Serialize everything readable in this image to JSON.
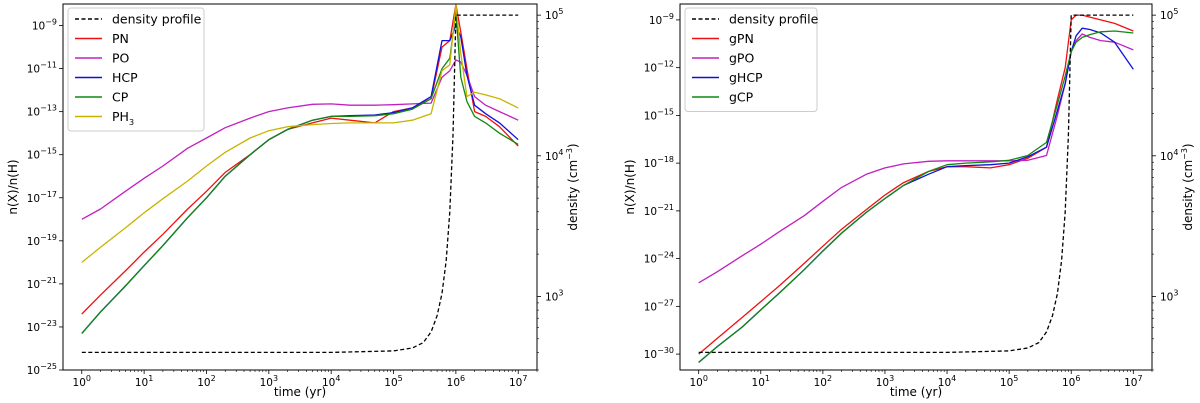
{
  "chart_data": [
    {
      "type": "line",
      "x_scale": "log",
      "y_scale": "log",
      "y2_scale": "log",
      "xlim": [
        0.5,
        20000000
      ],
      "ylim": [
        1e-25,
        1e-08
      ],
      "y2lim": [
        300,
        120000
      ],
      "xlabel": "time (yr)",
      "ylabel": "n(X)/n(H)",
      "y2label_base": "density (cm",
      "y2label_sup": "−3",
      "y2label_end": ")",
      "legend": "top-left",
      "x_ticks": [
        1,
        10,
        100,
        1000,
        10000,
        100000,
        1000000,
        10000000
      ],
      "x_tick_exps": [
        "0",
        "1",
        "2",
        "3",
        "4",
        "5",
        "6",
        "7"
      ],
      "y_ticks": [
        1e-25,
        1e-23,
        1e-21,
        1e-19,
        1e-17,
        1e-15,
        1e-13,
        1e-11,
        1e-09
      ],
      "y_tick_exps": [
        "−25",
        "−23",
        "−21",
        "−19",
        "−17",
        "−15",
        "−13",
        "−11",
        "−9"
      ],
      "y2_ticks": [
        1000,
        10000,
        100000
      ],
      "y2_tick_exps": [
        "3",
        "4",
        "5"
      ],
      "x": [
        1,
        2,
        5,
        10,
        20,
        50,
        100,
        200,
        500,
        1000,
        2000,
        5000,
        10000,
        20000,
        50000,
        100000,
        200000,
        400000,
        600000,
        800000,
        1000000,
        1200000,
        1500000,
        2000000,
        3000000,
        5000000,
        10000000
      ],
      "density_profile": {
        "name": "density profile",
        "color": "#000000",
        "dashed": true,
        "x": [
          1,
          10,
          100,
          1000,
          10000,
          100000,
          200000,
          300000,
          400000,
          500000,
          600000,
          700000,
          800000,
          900000,
          1000000,
          2000000,
          5000000,
          10000000
        ],
        "values": [
          400,
          400,
          400,
          400,
          400,
          410,
          430,
          470,
          560,
          730,
          1050,
          1800,
          4000,
          14000,
          100000,
          100000,
          100000,
          100000
        ]
      },
      "series": [
        {
          "name": "PN",
          "color": "#ee1111",
          "values": [
            4e-23,
            3e-22,
            4e-21,
            3e-20,
            2e-19,
            3e-18,
            2e-17,
            1.5e-16,
            1e-15,
            5e-15,
            1.5e-14,
            3e-14,
            5e-14,
            4e-14,
            3e-14,
            1e-13,
            1.5e-13,
            4e-13,
            1e-10,
            2e-10,
            1e-08,
            5e-10,
            1e-11,
            1e-13,
            6e-14,
            2e-14,
            2.5e-15
          ]
        },
        {
          "name": "PO",
          "color": "#c020c0",
          "values": [
            1e-18,
            3e-18,
            2e-17,
            8e-17,
            3e-16,
            2e-15,
            6e-15,
            1.8e-14,
            5e-14,
            1e-13,
            1.5e-13,
            2.2e-13,
            2.3e-13,
            2e-13,
            2e-13,
            2.1e-13,
            2.3e-13,
            2.5e-13,
            4e-12,
            8e-12,
            2.5e-11,
            2e-11,
            5e-12,
            5e-13,
            2e-13,
            1e-13,
            4e-14
          ]
        },
        {
          "name": "HCP",
          "color": "#1010dd",
          "values": [
            5e-24,
            5e-23,
            8e-22,
            7e-21,
            6e-20,
            1.2e-18,
            1e-17,
            1e-16,
            1e-15,
            5e-15,
            1.5e-14,
            4e-14,
            6e-14,
            6.5e-14,
            7e-14,
            9e-14,
            1.5e-13,
            5e-13,
            2e-10,
            2e-10,
            1e-09,
            3e-10,
            5e-12,
            2e-13,
            8e-14,
            3e-14,
            5e-15
          ]
        },
        {
          "name": "CP",
          "color": "#118811",
          "values": [
            5e-24,
            5e-23,
            8e-22,
            7e-21,
            6e-20,
            1.2e-18,
            1e-17,
            1e-16,
            1e-15,
            5e-15,
            1.5e-14,
            4e-14,
            6e-14,
            6e-14,
            6.5e-14,
            8e-14,
            1.3e-13,
            4e-13,
            1e-11,
            3e-11,
            4e-09,
            4e-12,
            3e-13,
            6e-14,
            3e-14,
            1e-14,
            3e-15
          ]
        },
        {
          "name": "PH3",
          "label_base": "PH",
          "label_sub": "3",
          "color": "#c8b400",
          "values": [
            1e-20,
            5e-20,
            4e-19,
            2e-18,
            9e-18,
            6e-17,
            3e-16,
            1.3e-15,
            6e-15,
            1.3e-14,
            2e-14,
            2.5e-14,
            2.8e-14,
            3e-14,
            3e-14,
            3e-14,
            4e-14,
            8e-14,
            8e-12,
            1.5e-11,
            1e-08,
            5e-11,
            5e-13,
            8e-13,
            6e-13,
            4e-13,
            1.5e-13
          ]
        }
      ]
    },
    {
      "type": "line",
      "x_scale": "log",
      "y_scale": "log",
      "y2_scale": "log",
      "xlim": [
        0.5,
        20000000
      ],
      "ylim": [
        1e-31,
        1e-08
      ],
      "y2lim": [
        300,
        120000
      ],
      "xlabel": "time (yr)",
      "ylabel": "n(X)/n(H)",
      "y2label_base": "density (cm",
      "y2label_sup": "−3",
      "y2label_end": ")",
      "legend": "top-left",
      "x_ticks": [
        1,
        10,
        100,
        1000,
        10000,
        100000,
        1000000,
        10000000
      ],
      "x_tick_exps": [
        "0",
        "1",
        "2",
        "3",
        "4",
        "5",
        "6",
        "7"
      ],
      "y_ticks": [
        1e-30,
        1e-27,
        1e-24,
        1e-21,
        1e-18,
        1e-15,
        1e-12,
        1e-09
      ],
      "y_tick_exps": [
        "−30",
        "−27",
        "−24",
        "−21",
        "−18",
        "−15",
        "−12",
        "−9"
      ],
      "y2_ticks": [
        1000,
        10000,
        100000
      ],
      "y2_tick_exps": [
        "3",
        "4",
        "5"
      ],
      "x": [
        1,
        2,
        5,
        10,
        20,
        50,
        100,
        200,
        500,
        1000,
        2000,
        5000,
        10000,
        20000,
        50000,
        100000,
        200000,
        400000,
        600000,
        800000,
        1000000,
        1200000,
        1500000,
        2000000,
        3000000,
        5000000,
        10000000
      ],
      "density_profile": {
        "name": "density profile",
        "color": "#000000",
        "dashed": true,
        "x": [
          1,
          10,
          100,
          1000,
          10000,
          100000,
          200000,
          300000,
          400000,
          500000,
          600000,
          700000,
          800000,
          900000,
          1000000,
          2000000,
          5000000,
          10000000
        ],
        "values": [
          400,
          400,
          400,
          400,
          400,
          410,
          430,
          470,
          560,
          730,
          1050,
          1800,
          4000,
          14000,
          100000,
          100000,
          100000,
          100000
        ]
      },
      "series": [
        {
          "name": "gPN",
          "color": "#ee1111",
          "values": [
            1e-30,
            1e-29,
            2e-28,
            2e-27,
            2e-26,
            5e-25,
            6e-24,
            7e-23,
            1.2e-21,
            1e-20,
            6e-20,
            3e-19,
            6e-19,
            6e-19,
            5e-19,
            8e-19,
            2e-18,
            1e-17,
            1e-14,
            1e-12,
            1e-09,
            2e-09,
            2e-09,
            1.5e-09,
            1e-09,
            6e-10,
            2e-10
          ]
        },
        {
          "name": "gPO",
          "color": "#c020c0",
          "values": [
            3e-26,
            1.5e-25,
            1.5e-24,
            8e-24,
            5e-23,
            5e-22,
            4e-21,
            3e-20,
            2e-19,
            5e-19,
            9e-19,
            1.3e-18,
            1.4e-18,
            1.4e-18,
            1.4e-18,
            1.4e-18,
            1.5e-18,
            3e-18,
            1e-15,
            1e-13,
            1e-11,
            5e-11,
            1.3e-10,
            8e-11,
            5e-11,
            4e-11,
            1.3e-11
          ]
        },
        {
          "name": "gHCP",
          "color": "#1010dd",
          "values": [
            3e-31,
            3e-30,
            5e-29,
            6e-28,
            7e-27,
            2e-25,
            3e-24,
            4e-23,
            8e-22,
            6e-21,
            4e-20,
            2e-19,
            6e-19,
            7e-19,
            8e-19,
            1e-18,
            2.5e-18,
            1e-17,
            2e-15,
            1e-13,
            1e-11,
            1e-10,
            3e-10,
            2.5e-10,
            1.5e-10,
            4e-11,
            8e-13
          ]
        },
        {
          "name": "gCP",
          "color": "#118811",
          "values": [
            3e-31,
            3e-30,
            5e-29,
            6e-28,
            7e-27,
            2e-25,
            3e-24,
            4e-23,
            8e-22,
            6e-21,
            4e-20,
            3e-19,
            8e-19,
            1e-18,
            1.2e-18,
            1.5e-18,
            3e-18,
            2e-17,
            5e-15,
            3e-13,
            1e-11,
            4e-11,
            8e-11,
            1.2e-10,
            1.8e-10,
            2e-10,
            1.5e-10
          ]
        }
      ]
    }
  ]
}
